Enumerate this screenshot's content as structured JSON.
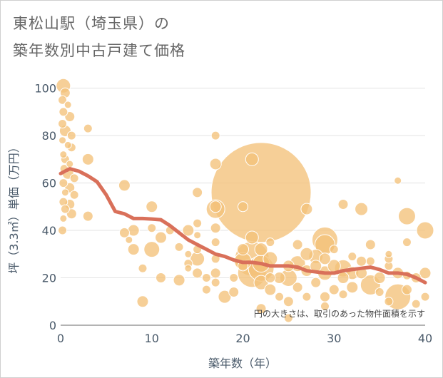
{
  "title_line1": "東松山駅（埼玉県）の",
  "title_line2": "築年数別中古戸建て価格",
  "chart_data": {
    "type": "scatter",
    "title": "東松山駅（埼玉県）の築年数別中古戸建て価格",
    "xlabel": "築年数（年）",
    "ylabel": "坪（3.3㎡）単価（万円）",
    "xlim": [
      0,
      40
    ],
    "ylim": [
      0,
      105
    ],
    "xticks": [
      0,
      10,
      20,
      30,
      40
    ],
    "yticks": [
      0,
      20,
      40,
      60,
      80,
      100
    ],
    "annotation": "円の大きさは、取引のあった物件面積を示す",
    "bubble_color": "#f3c27a",
    "trend_color": "#d9705a",
    "points": [
      [
        0.3,
        101,
        10
      ],
      [
        0.5,
        98,
        7
      ],
      [
        0.2,
        95,
        6
      ],
      [
        0.8,
        93,
        5
      ],
      [
        0.3,
        90,
        6
      ],
      [
        1,
        88,
        7
      ],
      [
        0.2,
        85,
        6
      ],
      [
        0.5,
        82,
        8
      ],
      [
        1.2,
        80,
        6
      ],
      [
        0.2,
        78,
        5
      ],
      [
        0.8,
        76,
        5
      ],
      [
        1.2,
        75,
        6
      ],
      [
        0.3,
        72,
        5
      ],
      [
        0.5,
        70,
        6
      ],
      [
        1,
        68,
        5
      ],
      [
        0.4,
        66,
        6
      ],
      [
        0.8,
        64,
        8
      ],
      [
        1.5,
        62,
        6
      ],
      [
        0.3,
        60,
        6
      ],
      [
        1,
        58,
        7
      ],
      [
        0.5,
        56,
        5
      ],
      [
        1.5,
        55,
        6
      ],
      [
        0.3,
        52,
        6
      ],
      [
        1,
        51,
        7
      ],
      [
        0.5,
        49,
        6
      ],
      [
        1.2,
        47,
        7
      ],
      [
        0.3,
        45,
        5
      ],
      [
        0.2,
        40,
        6
      ],
      [
        3,
        83,
        6
      ],
      [
        3,
        70,
        8
      ],
      [
        3,
        46,
        7
      ],
      [
        7,
        59,
        8
      ],
      [
        7,
        39,
        7
      ],
      [
        7.5,
        36,
        5
      ],
      [
        8,
        40,
        8
      ],
      [
        8,
        32,
        8
      ],
      [
        9,
        24,
        6
      ],
      [
        9,
        10,
        8
      ],
      [
        10,
        50,
        8
      ],
      [
        10,
        41,
        6
      ],
      [
        10,
        32,
        11
      ],
      [
        11,
        37,
        8
      ],
      [
        11,
        20,
        7
      ],
      [
        12,
        40,
        6
      ],
      [
        13,
        33,
        6
      ],
      [
        13,
        19,
        8
      ],
      [
        14,
        40,
        8
      ],
      [
        14,
        30,
        5
      ],
      [
        14,
        26,
        6
      ],
      [
        14,
        24,
        5
      ],
      [
        15,
        56,
        7
      ],
      [
        15,
        43,
        6
      ],
      [
        15,
        38,
        5
      ],
      [
        15,
        32,
        6
      ],
      [
        15,
        28,
        10
      ],
      [
        15,
        22,
        7
      ],
      [
        16,
        20,
        6
      ],
      [
        16,
        15,
        6
      ],
      [
        17,
        80,
        6
      ],
      [
        17,
        68,
        8
      ],
      [
        17,
        50,
        8
      ],
      [
        17,
        41,
        7
      ],
      [
        17,
        35,
        6
      ],
      [
        17,
        28,
        6
      ],
      [
        17,
        22,
        7
      ],
      [
        17,
        18,
        6
      ],
      [
        18,
        12,
        9
      ],
      [
        17,
        49,
        13
      ],
      [
        19,
        20,
        6
      ],
      [
        19,
        14,
        7
      ],
      [
        20,
        50,
        7
      ],
      [
        20,
        27,
        12
      ],
      [
        20,
        32,
        8
      ],
      [
        20,
        25,
        7
      ],
      [
        21,
        70,
        9
      ],
      [
        21,
        37,
        9
      ],
      [
        21,
        28,
        24
      ],
      [
        21,
        22,
        20
      ],
      [
        22,
        56,
        70
      ],
      [
        22,
        24,
        18
      ],
      [
        22,
        26,
        12
      ],
      [
        22,
        18,
        10
      ],
      [
        22,
        32,
        9
      ],
      [
        22,
        7,
        7
      ],
      [
        23,
        28,
        10
      ],
      [
        23,
        35,
        6
      ],
      [
        23,
        20,
        7
      ],
      [
        23,
        15,
        8
      ],
      [
        24,
        20,
        8
      ],
      [
        24,
        12,
        6
      ],
      [
        25,
        25,
        8
      ],
      [
        25,
        20,
        12
      ],
      [
        25,
        10,
        7
      ],
      [
        25,
        3,
        6
      ],
      [
        26,
        34,
        7
      ],
      [
        26,
        26,
        11
      ],
      [
        26,
        16,
        7
      ],
      [
        27,
        30,
        9
      ],
      [
        27,
        23,
        8
      ],
      [
        27,
        49,
        8
      ],
      [
        27,
        12,
        6
      ],
      [
        28,
        25,
        8
      ],
      [
        28,
        18,
        7
      ],
      [
        28,
        29,
        10
      ],
      [
        29,
        34,
        14
      ],
      [
        29,
        36,
        18
      ],
      [
        29,
        28,
        8
      ],
      [
        29,
        22,
        10
      ],
      [
        29,
        12,
        7
      ],
      [
        29,
        8,
        6
      ],
      [
        30,
        25,
        9
      ],
      [
        30,
        15,
        7
      ],
      [
        30,
        32,
        6
      ],
      [
        31,
        51,
        7
      ],
      [
        31,
        24,
        12
      ],
      [
        31,
        20,
        8
      ],
      [
        31,
        13,
        6
      ],
      [
        32,
        29,
        6
      ],
      [
        32,
        22,
        9
      ],
      [
        32,
        16,
        8
      ],
      [
        33,
        49,
        9
      ],
      [
        33,
        27,
        7
      ],
      [
        33,
        22,
        8
      ],
      [
        34,
        34,
        7
      ],
      [
        34,
        27,
        6
      ],
      [
        34,
        17,
        14
      ],
      [
        35,
        20,
        8
      ],
      [
        35,
        14,
        6
      ],
      [
        36,
        25,
        6
      ],
      [
        36,
        30,
        5
      ],
      [
        36,
        28,
        6
      ],
      [
        36,
        10,
        6
      ],
      [
        37,
        61,
        5
      ],
      [
        37,
        22,
        8
      ],
      [
        37,
        12,
        18
      ],
      [
        38,
        46,
        12
      ],
      [
        38,
        35,
        6
      ],
      [
        38,
        21,
        6
      ],
      [
        38,
        15,
        7
      ],
      [
        39,
        20,
        7
      ],
      [
        39,
        9,
        6
      ],
      [
        40,
        40,
        12
      ],
      [
        40,
        22,
        8
      ],
      [
        40,
        12,
        6
      ]
    ],
    "trend": [
      [
        0,
        64
      ],
      [
        1,
        66
      ],
      [
        2,
        65
      ],
      [
        3,
        63
      ],
      [
        4,
        60.5
      ],
      [
        5,
        55
      ],
      [
        6,
        48
      ],
      [
        7,
        47
      ],
      [
        8,
        45
      ],
      [
        9,
        45
      ],
      [
        10,
        44.8
      ],
      [
        11,
        44.5
      ],
      [
        12,
        42
      ],
      [
        13,
        39
      ],
      [
        14,
        36
      ],
      [
        15,
        34
      ],
      [
        16,
        32
      ],
      [
        17,
        30
      ],
      [
        18,
        29
      ],
      [
        19,
        27.5
      ],
      [
        20,
        26.5
      ],
      [
        21,
        26.5
      ],
      [
        22,
        26
      ],
      [
        23,
        25
      ],
      [
        24,
        25
      ],
      [
        25,
        25
      ],
      [
        26,
        24.5
      ],
      [
        27,
        23
      ],
      [
        28,
        22.5
      ],
      [
        29,
        22
      ],
      [
        30,
        22
      ],
      [
        31,
        23
      ],
      [
        32,
        23.5
      ],
      [
        33,
        24
      ],
      [
        34,
        24.5
      ],
      [
        35,
        23.5
      ],
      [
        36,
        22
      ],
      [
        37,
        22
      ],
      [
        38,
        21.5
      ],
      [
        39,
        20
      ],
      [
        40,
        18
      ]
    ]
  }
}
